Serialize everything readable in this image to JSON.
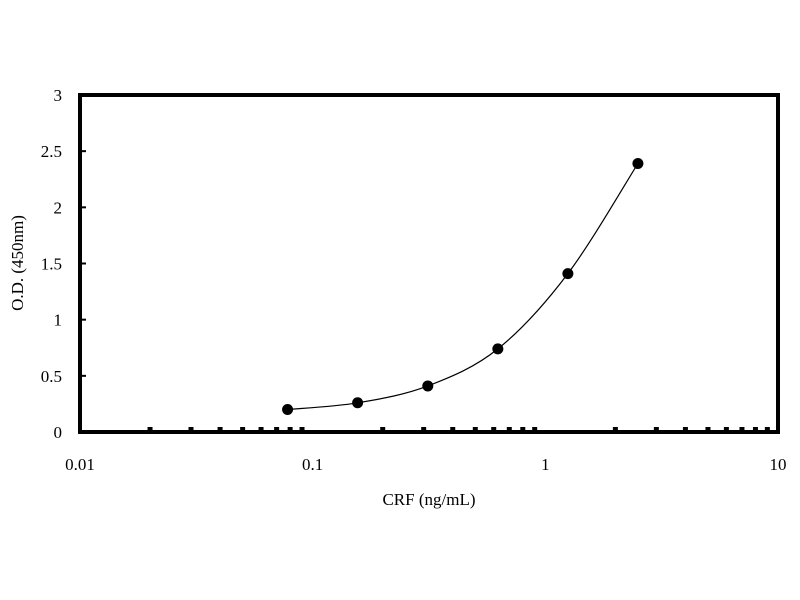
{
  "chart_data": {
    "type": "scatter",
    "title": "",
    "xlabel": "CRF  (ng/mL)",
    "ylabel": "O.D. (450nm)",
    "xscale": "log",
    "xlim": [
      0.01,
      10
    ],
    "ylim": [
      0,
      3
    ],
    "grid": false,
    "legend": "none",
    "x_ticks": [
      "0.01",
      "0.1",
      "1",
      "10"
    ],
    "y_ticks": [
      "0",
      "0.5",
      "1",
      "1.5",
      "2",
      "2.5",
      "3"
    ],
    "series": [
      {
        "x": [
          0.078,
          0.156,
          0.3125,
          0.625,
          1.25,
          2.5
        ],
        "y": [
          0.2,
          0.26,
          0.41,
          0.74,
          1.41,
          2.39
        ]
      }
    ],
    "fit_curve": true,
    "colors": {
      "marker": "#000000",
      "line": "#000000",
      "frame": "#000000"
    }
  }
}
